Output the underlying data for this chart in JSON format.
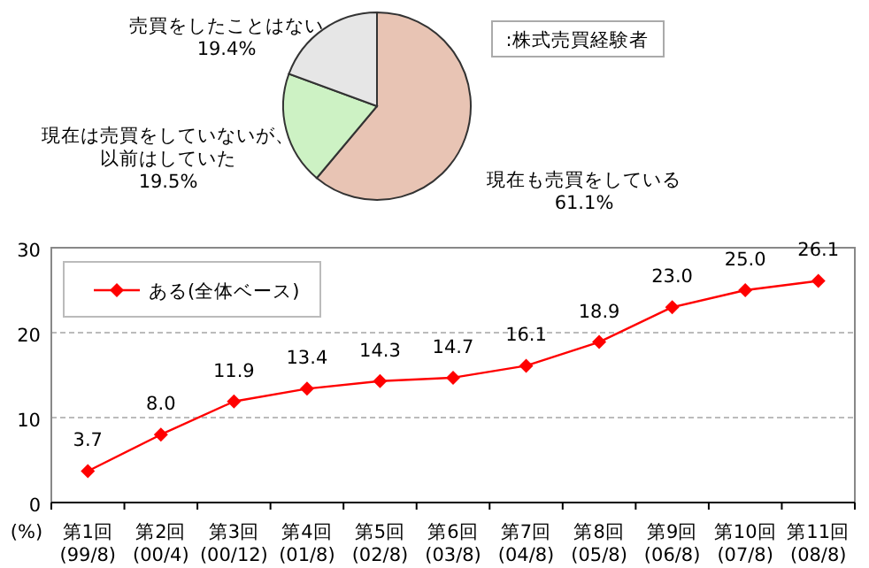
{
  "chart_data": [
    {
      "type": "pie",
      "title": ":株式売買経験者",
      "categories": [
        "現在も売買をしている",
        "現在は売買をしていないが、以前はしていた",
        "売買をしたことはない"
      ],
      "values": [
        61.1,
        19.5,
        19.4
      ],
      "colors": [
        "#e8c4b4",
        "#cdf2c4",
        "#e6e6e6"
      ],
      "value_labels": [
        "61.1%",
        "19.5%",
        "19.4%"
      ]
    },
    {
      "type": "line",
      "ylabel": "(%)",
      "categories": [
        "第1回\n(99/8)",
        "第2回\n(00/4)",
        "第3回\n(00/12)",
        "第4回\n(01/8)",
        "第5回\n(02/8)",
        "第6回\n(03/8)",
        "第7回\n(04/8)",
        "第8回\n(05/8)",
        "第9回\n(06/8)",
        "第10回\n(07/8)",
        "第11回\n(08/8)"
      ],
      "series": [
        {
          "name": "ある(全体ベース)",
          "color": "#ff0000",
          "values": [
            3.7,
            8.0,
            11.9,
            13.4,
            14.3,
            14.7,
            16.1,
            18.9,
            23.0,
            25.0,
            26.1
          ],
          "value_labels": [
            "3.7",
            "8.0",
            "11.9",
            "13.4",
            "14.3",
            "14.7",
            "16.1",
            "18.9",
            "23.0",
            "25.0",
            "26.1"
          ]
        }
      ],
      "ylim": [
        0,
        30
      ],
      "yticks": [
        0,
        10,
        20,
        30
      ],
      "grid": "y",
      "legend": "top left",
      "marker": "diamond",
      "line_style": "solid"
    }
  ]
}
